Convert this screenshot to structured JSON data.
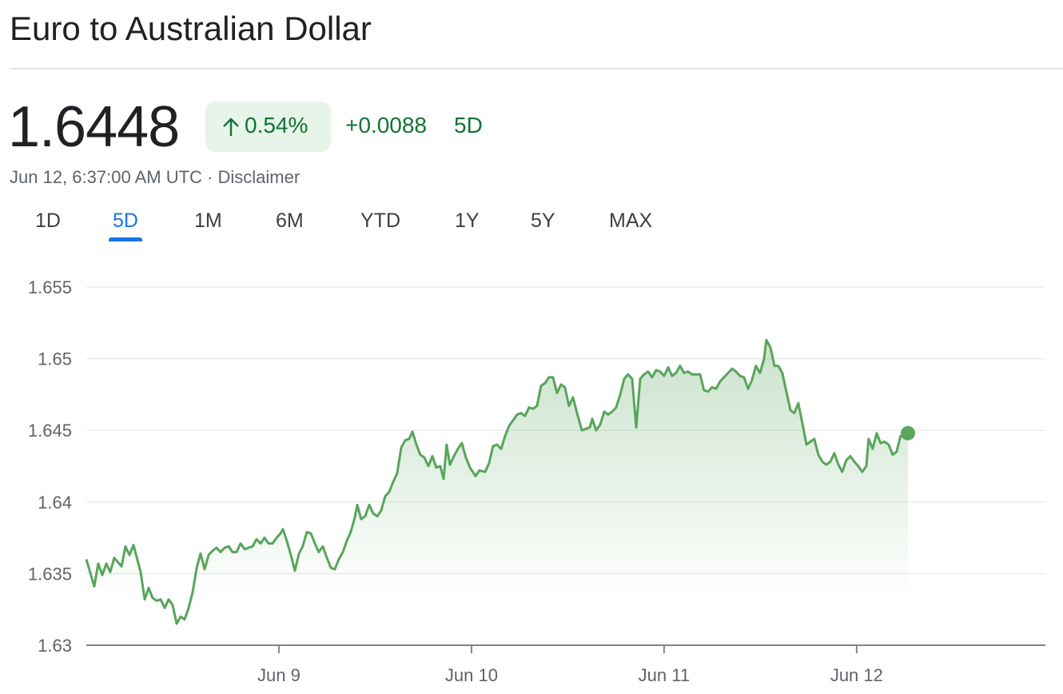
{
  "header": {
    "title": "Euro to Australian Dollar"
  },
  "quote": {
    "price": "1.6448",
    "change_percent": "0.54%",
    "change": "+0.0088",
    "period": "5D",
    "timestamp": "Jun 12, 6:37:00 AM UTC",
    "separator": "·",
    "disclaimer": "Disclaimer"
  },
  "tabs": {
    "items": [
      "1D",
      "5D",
      "1M",
      "6M",
      "YTD",
      "1Y",
      "5Y",
      "MAX"
    ],
    "selected": 1
  },
  "chart_data": {
    "type": "area",
    "color": "#58a55c",
    "xlim": [
      0,
      4.98
    ],
    "xticks": [
      {
        "value": 1,
        "label": "Jun 9"
      },
      {
        "value": 2,
        "label": "Jun 10"
      },
      {
        "value": 3,
        "label": "Jun 11"
      },
      {
        "value": 4,
        "label": "Jun 12"
      }
    ],
    "ylim": [
      1.63,
      1.655
    ],
    "yticks": [
      1.63,
      1.635,
      1.64,
      1.645,
      1.65,
      1.655
    ],
    "grid": true,
    "x": [
      0,
      0.041,
      0.062,
      0.083,
      0.104,
      0.124,
      0.145,
      0.183,
      0.203,
      0.224,
      0.245,
      0.282,
      0.303,
      0.324,
      0.344,
      0.365,
      0.386,
      0.407,
      0.427,
      0.448,
      0.469,
      0.49,
      0.51,
      0.531,
      0.552,
      0.573,
      0.593,
      0.614,
      0.635,
      0.656,
      0.676,
      0.697,
      0.718,
      0.739,
      0.759,
      0.78,
      0.801,
      0.822,
      0.842,
      0.863,
      0.884,
      0.905,
      0.925,
      0.946,
      0.967,
      0.988,
      1.008,
      1.021,
      1.041,
      1.062,
      1.083,
      1.104,
      1.124,
      1.145,
      1.166,
      1.187,
      1.207,
      1.228,
      1.249,
      1.27,
      1.29,
      1.311,
      1.332,
      1.353,
      1.373,
      1.394,
      1.407,
      1.427,
      1.448,
      1.469,
      1.49,
      1.51,
      1.531,
      1.552,
      1.573,
      1.593,
      1.614,
      1.635,
      1.656,
      1.676,
      1.693,
      1.714,
      1.734,
      1.755,
      1.776,
      1.797,
      1.817,
      1.838,
      1.855,
      1.871,
      1.888,
      1.909,
      1.929,
      1.95,
      1.971,
      1.992,
      2.021,
      2.041,
      2.071,
      2.091,
      2.112,
      2.133,
      2.154,
      2.174,
      2.195,
      2.216,
      2.237,
      2.257,
      2.278,
      2.299,
      2.32,
      2.34,
      2.361,
      2.382,
      2.402,
      2.423,
      2.444,
      2.465,
      2.485,
      2.506,
      2.527,
      2.548,
      2.573,
      2.593,
      2.614,
      2.627,
      2.647,
      2.668,
      2.689,
      2.71,
      2.73,
      2.751,
      2.772,
      2.793,
      2.813,
      2.834,
      2.855,
      2.876,
      2.896,
      2.917,
      2.938,
      2.959,
      2.979,
      3,
      3.021,
      3.041,
      3.062,
      3.083,
      3.104,
      3.124,
      3.145,
      3.187,
      3.207,
      3.228,
      3.249,
      3.27,
      3.29,
      3.311,
      3.332,
      3.353,
      3.373,
      3.394,
      3.415,
      3.436,
      3.456,
      3.477,
      3.498,
      3.519,
      3.531,
      3.552,
      3.573,
      3.593,
      3.614,
      3.635,
      3.656,
      3.676,
      3.697,
      3.718,
      3.739,
      3.759,
      3.78,
      3.801,
      3.822,
      3.842,
      3.863,
      3.884,
      3.905,
      3.925,
      3.946,
      3.967,
      3.988,
      4.008,
      4.029,
      4.05,
      4.062,
      4.083,
      4.104,
      4.124,
      4.145,
      4.166,
      4.187,
      4.207,
      4.228,
      4.266
    ],
    "values": [
      1.636,
      1.6341,
      1.6357,
      1.6349,
      1.6357,
      1.6351,
      1.6361,
      1.6355,
      1.6369,
      1.6363,
      1.637,
      1.6351,
      1.6332,
      1.634,
      1.6333,
      1.6331,
      1.6332,
      1.6326,
      1.6332,
      1.6328,
      1.6315,
      1.632,
      1.6318,
      1.6326,
      1.6337,
      1.6354,
      1.6364,
      1.6353,
      1.6363,
      1.6366,
      1.6368,
      1.6365,
      1.6368,
      1.6369,
      1.6365,
      1.6365,
      1.6371,
      1.6367,
      1.6368,
      1.6369,
      1.6374,
      1.6371,
      1.6375,
      1.6371,
      1.6371,
      1.6375,
      1.6378,
      1.6381,
      1.6373,
      1.6363,
      1.6352,
      1.6364,
      1.6369,
      1.6379,
      1.6378,
      1.6371,
      1.6365,
      1.6369,
      1.6361,
      1.6354,
      1.6353,
      1.636,
      1.6365,
      1.6373,
      1.6379,
      1.6389,
      1.6398,
      1.6388,
      1.639,
      1.6398,
      1.6392,
      1.639,
      1.6394,
      1.6404,
      1.6407,
      1.6414,
      1.642,
      1.6438,
      1.6443,
      1.6444,
      1.6449,
      1.644,
      1.6433,
      1.6431,
      1.6425,
      1.6432,
      1.6424,
      1.6425,
      1.6416,
      1.644,
      1.6426,
      1.6432,
      1.6437,
      1.6441,
      1.6431,
      1.6424,
      1.6418,
      1.6422,
      1.6421,
      1.6427,
      1.6439,
      1.644,
      1.6437,
      1.6446,
      1.6453,
      1.6457,
      1.6461,
      1.6462,
      1.646,
      1.6466,
      1.6465,
      1.6467,
      1.6481,
      1.6483,
      1.6487,
      1.6487,
      1.6476,
      1.6482,
      1.648,
      1.6467,
      1.6473,
      1.6462,
      1.645,
      1.6451,
      1.6452,
      1.6458,
      1.645,
      1.6454,
      1.6463,
      1.6461,
      1.6463,
      1.6466,
      1.6475,
      1.6486,
      1.6489,
      1.6486,
      1.6452,
      1.6486,
      1.6489,
      1.6491,
      1.6487,
      1.6492,
      1.6491,
      1.6488,
      1.6494,
      1.6488,
      1.649,
      1.6495,
      1.649,
      1.6491,
      1.6489,
      1.6489,
      1.6478,
      1.6477,
      1.648,
      1.6479,
      1.6484,
      1.6487,
      1.649,
      1.6493,
      1.6491,
      1.6488,
      1.6487,
      1.6479,
      1.6485,
      1.6495,
      1.649,
      1.65,
      1.6513,
      1.6508,
      1.6495,
      1.6495,
      1.649,
      1.6477,
      1.6464,
      1.6462,
      1.6469,
      1.6455,
      1.644,
      1.6442,
      1.6444,
      1.6433,
      1.6428,
      1.6426,
      1.6428,
      1.6434,
      1.6426,
      1.6421,
      1.6429,
      1.6432,
      1.6428,
      1.6425,
      1.6421,
      1.6425,
      1.6444,
      1.6437,
      1.6448,
      1.6441,
      1.6442,
      1.644,
      1.6433,
      1.6435,
      1.6446,
      1.6448
    ]
  }
}
